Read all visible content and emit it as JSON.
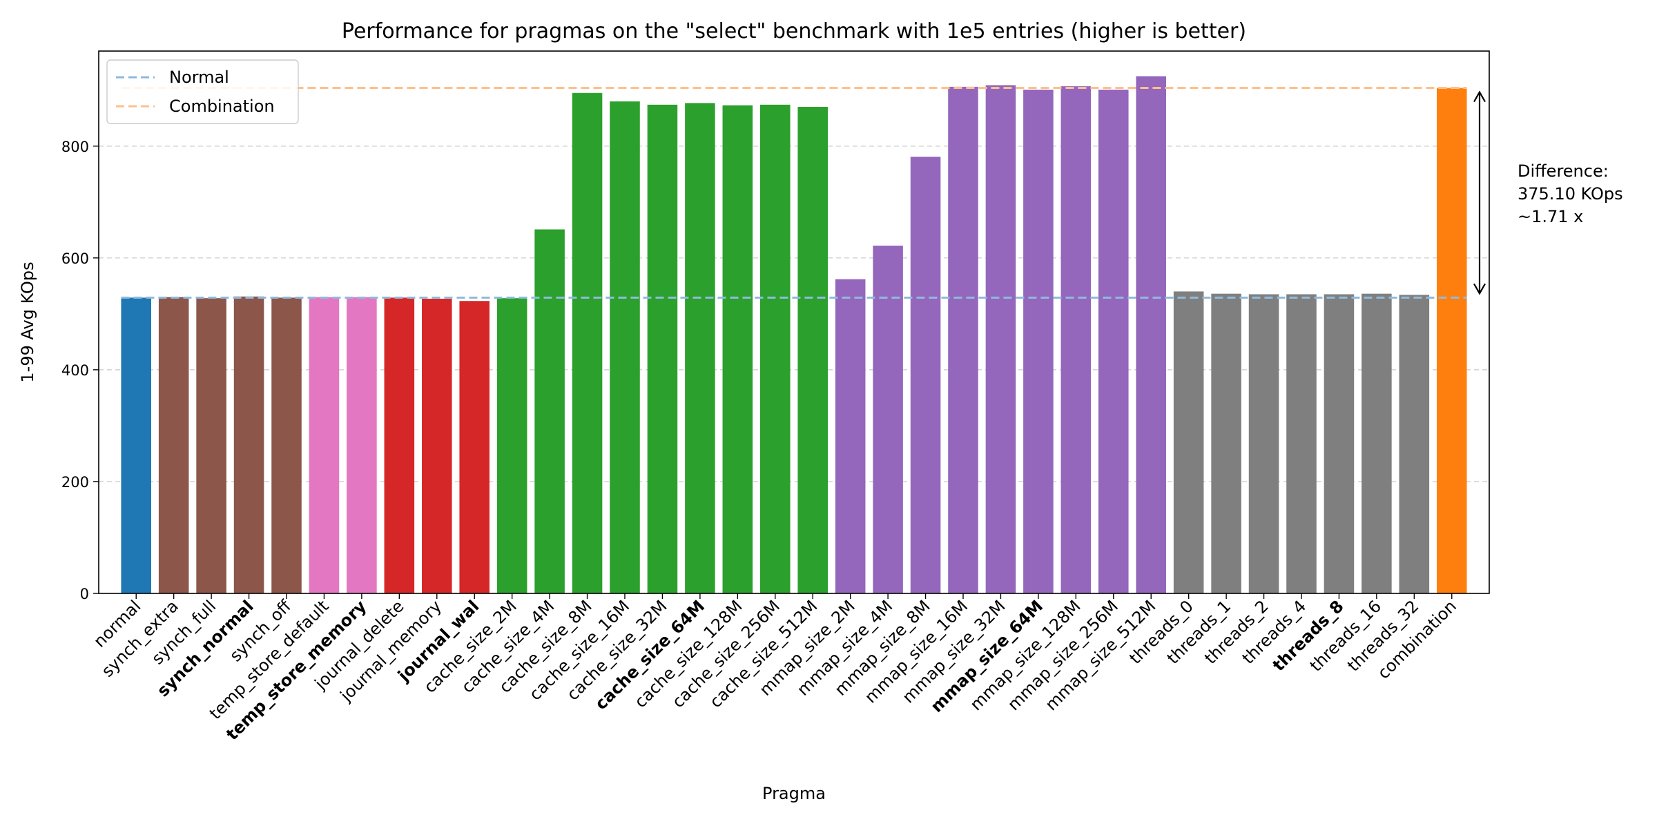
{
  "chart_data": {
    "type": "bar",
    "title": "Performance for pragmas on the \"select\" benchmark with 1e5 entries (higher is better)",
    "xlabel": "Pragma",
    "ylabel": "1-99 Avg KOps",
    "ylim": [
      0,
      970
    ],
    "yticks": [
      0,
      200,
      400,
      600,
      800
    ],
    "grid": "y-dashed",
    "legend": {
      "position": "top-left",
      "entries": [
        {
          "name": "Normal",
          "color": "#8fbadd",
          "style": "dashed",
          "value": 529
        },
        {
          "name": "Combination",
          "color": "#ffc08c",
          "style": "dashed",
          "value": 904
        }
      ]
    },
    "bars": [
      {
        "label": "normal",
        "value": 529,
        "color": "#1f77b4",
        "bold": false
      },
      {
        "label": "synch_extra",
        "value": 530,
        "color": "#8c564b",
        "bold": false
      },
      {
        "label": "synch_full",
        "value": 528,
        "color": "#8c564b",
        "bold": false
      },
      {
        "label": "synch_normal",
        "value": 531,
        "color": "#8c564b",
        "bold": true
      },
      {
        "label": "synch_off",
        "value": 529,
        "color": "#8c564b",
        "bold": false
      },
      {
        "label": "temp_store_default",
        "value": 530,
        "color": "#e377c2",
        "bold": false
      },
      {
        "label": "temp_store_memory",
        "value": 530,
        "color": "#e377c2",
        "bold": true
      },
      {
        "label": "journal_delete",
        "value": 529,
        "color": "#d62728",
        "bold": false
      },
      {
        "label": "journal_memory",
        "value": 527,
        "color": "#d62728",
        "bold": false
      },
      {
        "label": "journal_wal",
        "value": 523,
        "color": "#d62728",
        "bold": true
      },
      {
        "label": "cache_size_2M",
        "value": 528,
        "color": "#2ca02c",
        "bold": false
      },
      {
        "label": "cache_size_4M",
        "value": 651,
        "color": "#2ca02c",
        "bold": false
      },
      {
        "label": "cache_size_8M",
        "value": 895,
        "color": "#2ca02c",
        "bold": false
      },
      {
        "label": "cache_size_16M",
        "value": 880,
        "color": "#2ca02c",
        "bold": false
      },
      {
        "label": "cache_size_32M",
        "value": 874,
        "color": "#2ca02c",
        "bold": false
      },
      {
        "label": "cache_size_64M",
        "value": 877,
        "color": "#2ca02c",
        "bold": true
      },
      {
        "label": "cache_size_128M",
        "value": 873,
        "color": "#2ca02c",
        "bold": false
      },
      {
        "label": "cache_size_256M",
        "value": 874,
        "color": "#2ca02c",
        "bold": false
      },
      {
        "label": "cache_size_512M",
        "value": 870,
        "color": "#2ca02c",
        "bold": false
      },
      {
        "label": "mmap_size_2M",
        "value": 562,
        "color": "#9467bd",
        "bold": false
      },
      {
        "label": "mmap_size_4M",
        "value": 622,
        "color": "#9467bd",
        "bold": false
      },
      {
        "label": "mmap_size_8M",
        "value": 781,
        "color": "#9467bd",
        "bold": false
      },
      {
        "label": "mmap_size_16M",
        "value": 906,
        "color": "#9467bd",
        "bold": false
      },
      {
        "label": "mmap_size_32M",
        "value": 909,
        "color": "#9467bd",
        "bold": false
      },
      {
        "label": "mmap_size_64M",
        "value": 901,
        "color": "#9467bd",
        "bold": true
      },
      {
        "label": "mmap_size_128M",
        "value": 907,
        "color": "#9467bd",
        "bold": false
      },
      {
        "label": "mmap_size_256M",
        "value": 901,
        "color": "#9467bd",
        "bold": false
      },
      {
        "label": "mmap_size_512M",
        "value": 925,
        "color": "#9467bd",
        "bold": false
      },
      {
        "label": "threads_0",
        "value": 540,
        "color": "#7f7f7f",
        "bold": false
      },
      {
        "label": "threads_1",
        "value": 536,
        "color": "#7f7f7f",
        "bold": false
      },
      {
        "label": "threads_2",
        "value": 535,
        "color": "#7f7f7f",
        "bold": false
      },
      {
        "label": "threads_4",
        "value": 535,
        "color": "#7f7f7f",
        "bold": false
      },
      {
        "label": "threads_8",
        "value": 535,
        "color": "#7f7f7f",
        "bold": true
      },
      {
        "label": "threads_16",
        "value": 536,
        "color": "#7f7f7f",
        "bold": false
      },
      {
        "label": "threads_32",
        "value": 534,
        "color": "#7f7f7f",
        "bold": false
      },
      {
        "label": "combination",
        "value": 904,
        "color": "#ff7f0e",
        "bold": false
      }
    ],
    "annotation": {
      "lines": [
        "Difference:",
        "375.10 KOps",
        "~1.71 x"
      ],
      "arrow_from": 529,
      "arrow_to": 904
    }
  }
}
